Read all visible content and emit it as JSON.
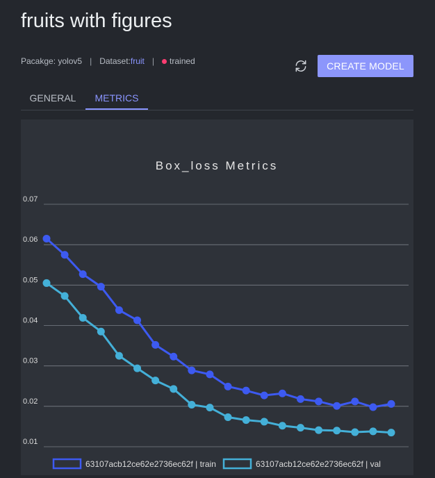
{
  "header": {
    "title": "fruits with figures",
    "package_label": "Pacakge: yolov5",
    "dataset_label": "Dataset: ",
    "dataset_value": "fruit",
    "status": "trained",
    "status_color": "#ff3d71",
    "refresh_icon": "refresh-icon",
    "create_button": "CREATE MODEL"
  },
  "tabs": [
    {
      "label": "GENERAL",
      "active": false
    },
    {
      "label": "METRICS",
      "active": true
    }
  ],
  "colors": {
    "accent": "#8a95ff",
    "train": "#3d5af1",
    "val": "#44b0d8"
  },
  "chart_data": {
    "type": "line",
    "title": "Box_loss Metrics",
    "xlabel": "",
    "ylabel": "",
    "ylim": [
      0.01,
      0.07
    ],
    "yticks": [
      "0.07",
      "0.06",
      "0.05",
      "0.04",
      "0.03",
      "0.02",
      "0.01"
    ],
    "ytick_values": [
      0.07,
      0.06,
      0.05,
      0.04,
      0.03,
      0.02,
      0.01
    ],
    "x": [
      0,
      1,
      2,
      3,
      4,
      5,
      6,
      7,
      8,
      9,
      10,
      11,
      12,
      13,
      14,
      15,
      16,
      17,
      18,
      19
    ],
    "grid": true,
    "legend": "bottom",
    "series": [
      {
        "name": "63107acb12ce62e2736ec62f | train",
        "color": "#3d5af1",
        "values": [
          0.0615,
          0.0575,
          0.0527,
          0.0496,
          0.0438,
          0.0413,
          0.0352,
          0.0323,
          0.0289,
          0.0279,
          0.0249,
          0.0239,
          0.0227,
          0.0232,
          0.0218,
          0.0212,
          0.0201,
          0.0212,
          0.0198,
          0.0206
        ]
      },
      {
        "name": "63107acb12ce62e2736ec62f | val",
        "color": "#44b0d8",
        "values": [
          0.0505,
          0.0473,
          0.0419,
          0.0385,
          0.0325,
          0.0294,
          0.0264,
          0.0243,
          0.0204,
          0.0197,
          0.0173,
          0.0166,
          0.0162,
          0.0152,
          0.0147,
          0.0141,
          0.014,
          0.0136,
          0.0138,
          0.0135
        ]
      }
    ]
  }
}
